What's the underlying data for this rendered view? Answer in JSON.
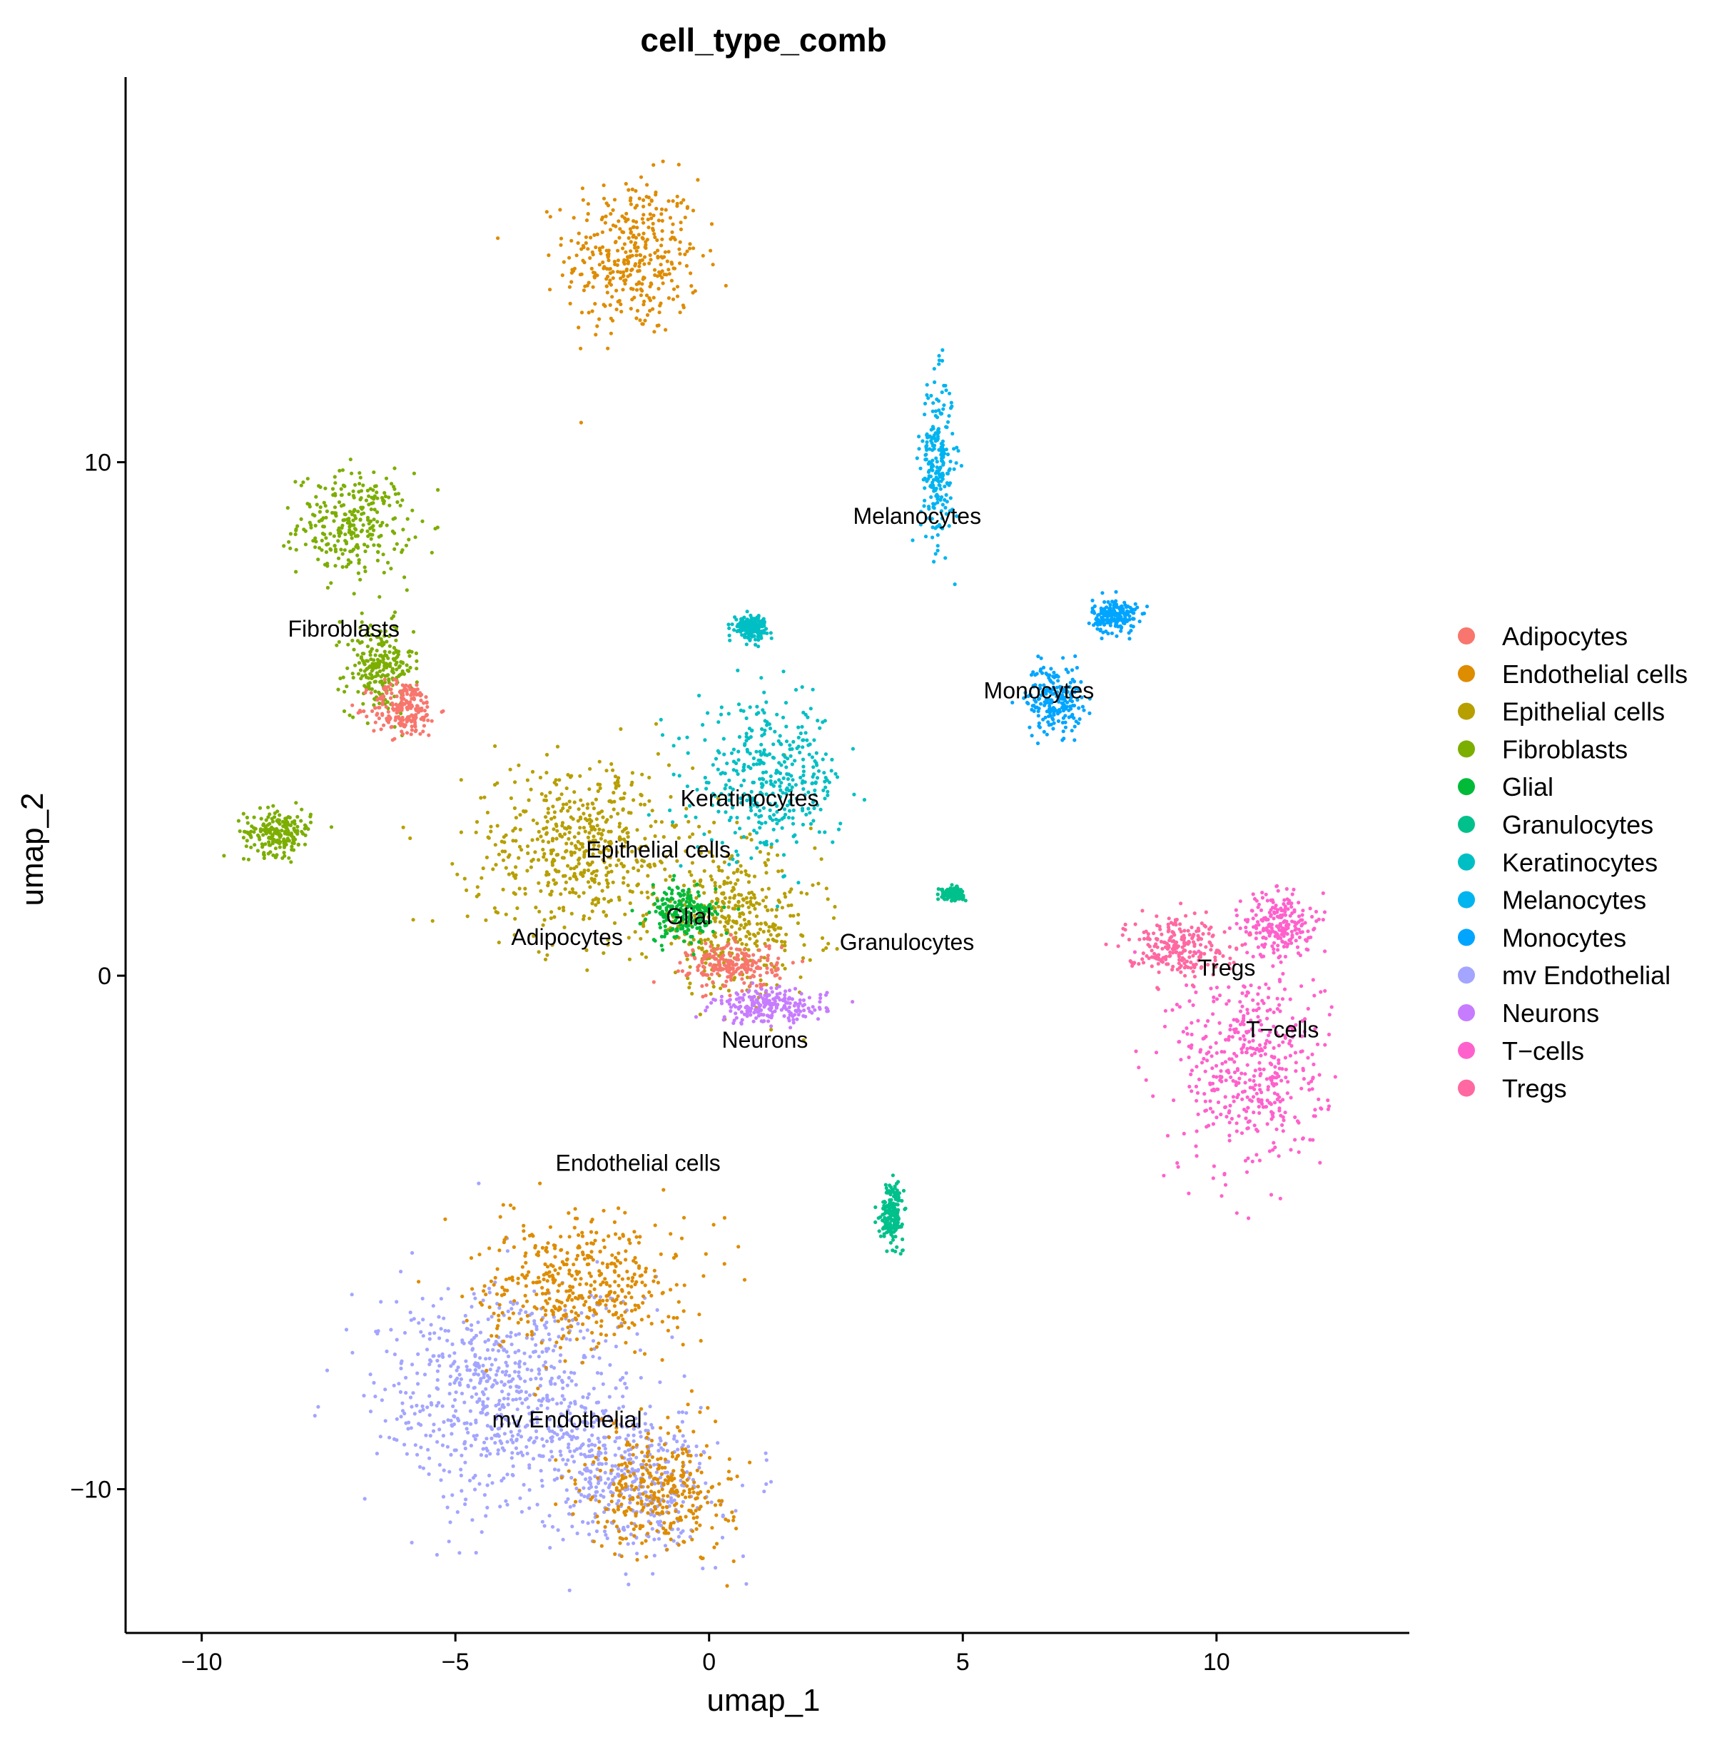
{
  "chart_data": {
    "type": "scatter",
    "title": "cell_type_comb",
    "xlabel": "umap_1",
    "ylabel": "umap_2",
    "xlim": [
      -11.5,
      13.8
    ],
    "ylim": [
      -12.8,
      17.5
    ],
    "xticks": [
      -10,
      -5,
      0,
      5,
      10
    ],
    "xtick_labels": [
      "−10",
      "−5",
      "0",
      "5",
      "10"
    ],
    "yticks": [
      -10,
      0,
      10
    ],
    "ytick_labels": [
      "−10",
      "0",
      "10"
    ],
    "grid": false,
    "legend_position": "right",
    "series": [
      {
        "name": "Adipocytes",
        "color": "#F8766D"
      },
      {
        "name": "Endothelial cells",
        "color": "#DE8C00"
      },
      {
        "name": "Epithelial cells",
        "color": "#B79F00"
      },
      {
        "name": "Fibroblasts",
        "color": "#7CAE00"
      },
      {
        "name": "Glial",
        "color": "#00BA38"
      },
      {
        "name": "Granulocytes",
        "color": "#00C08B"
      },
      {
        "name": "Keratinocytes",
        "color": "#00BFC4"
      },
      {
        "name": "Melanocytes",
        "color": "#00B4F0"
      },
      {
        "name": "Monocytes",
        "color": "#00A5FF"
      },
      {
        "name": "mv Endothelial",
        "color": "#A3A5FF"
      },
      {
        "name": "Neurons",
        "color": "#C77CFF"
      },
      {
        "name": "T−cells",
        "color": "#FF61CC"
      },
      {
        "name": "Tregs",
        "color": "#FF68A1"
      }
    ],
    "clusters": [
      {
        "series": 1,
        "cx": -1.5,
        "cy": 14.0,
        "sx": 1.2,
        "sy": 1.4
      },
      {
        "series": 3,
        "cx": -7.0,
        "cy": 8.8,
        "sx": 1.0,
        "sy": 0.9
      },
      {
        "series": 3,
        "cx": -6.5,
        "cy": 6.0,
        "sx": 0.6,
        "sy": 0.8
      },
      {
        "series": 0,
        "cx": -6.0,
        "cy": 5.2,
        "sx": 0.6,
        "sy": 0.5
      },
      {
        "series": 3,
        "cx": -8.5,
        "cy": 2.8,
        "sx": 0.6,
        "sy": 0.4
      },
      {
        "series": 7,
        "cx": 4.5,
        "cy": 10.0,
        "sx": 0.3,
        "sy": 1.5
      },
      {
        "series": 8,
        "cx": 6.8,
        "cy": 5.4,
        "sx": 0.5,
        "sy": 0.6
      },
      {
        "series": 8,
        "cx": 8.0,
        "cy": 7.0,
        "sx": 0.4,
        "sy": 0.3
      },
      {
        "series": 2,
        "cx": -2.5,
        "cy": 2.5,
        "sx": 2.0,
        "sy": 1.5
      },
      {
        "series": 2,
        "cx": 0.5,
        "cy": 1.0,
        "sx": 1.5,
        "sy": 1.2
      },
      {
        "series": 6,
        "cx": 1.2,
        "cy": 3.8,
        "sx": 1.3,
        "sy": 1.3
      },
      {
        "series": 6,
        "cx": 0.8,
        "cy": 6.8,
        "sx": 0.3,
        "sy": 0.2
      },
      {
        "series": 0,
        "cx": 0.5,
        "cy": 0.2,
        "sx": 0.8,
        "sy": 0.4
      },
      {
        "series": 10,
        "cx": 1.2,
        "cy": -0.6,
        "sx": 1.0,
        "sy": 0.3
      },
      {
        "series": 4,
        "cx": -0.5,
        "cy": 1.2,
        "sx": 0.6,
        "sy": 0.5
      },
      {
        "series": 5,
        "cx": 4.8,
        "cy": 1.6,
        "sx": 0.2,
        "sy": 0.1
      },
      {
        "series": 5,
        "cx": 3.6,
        "cy": -4.6,
        "sx": 0.2,
        "sy": 0.5
      },
      {
        "series": 11,
        "cx": 10.7,
        "cy": -1.8,
        "sx": 1.3,
        "sy": 1.9
      },
      {
        "series": 11,
        "cx": 11.2,
        "cy": 1.0,
        "sx": 0.6,
        "sy": 0.6
      },
      {
        "series": 12,
        "cx": 9.2,
        "cy": 0.6,
        "sx": 0.9,
        "sy": 0.5
      },
      {
        "series": 9,
        "cx": -4.0,
        "cy": -8.2,
        "sx": 2.3,
        "sy": 2.0
      },
      {
        "series": 9,
        "cx": -1.5,
        "cy": -9.8,
        "sx": 1.5,
        "sy": 1.3
      },
      {
        "series": 1,
        "cx": -2.5,
        "cy": -6.0,
        "sx": 1.8,
        "sy": 1.2
      },
      {
        "series": 1,
        "cx": -1.0,
        "cy": -10.0,
        "sx": 1.3,
        "sy": 1.1
      }
    ],
    "cluster_labels": [
      {
        "text": "Melanocytes",
        "x": 4.1,
        "y": 8.8
      },
      {
        "text": "Fibroblasts",
        "x": -7.2,
        "y": 6.6
      },
      {
        "text": "Monocytes",
        "x": 6.5,
        "y": 5.4
      },
      {
        "text": "Keratinocytes",
        "x": 0.8,
        "y": 3.3
      },
      {
        "text": "Epithelial cells",
        "x": -1.0,
        "y": 2.3
      },
      {
        "text": "Glial",
        "x": -0.4,
        "y": 1.0
      },
      {
        "text": "Adipocytes",
        "x": -2.8,
        "y": 0.6
      },
      {
        "text": "Granulocytes",
        "x": 3.9,
        "y": 0.5
      },
      {
        "text": "Tregs",
        "x": 10.2,
        "y": 0.0
      },
      {
        "text": "T−cells",
        "x": 11.3,
        "y": -1.2
      },
      {
        "text": "Neurons",
        "x": 1.1,
        "y": -1.4
      },
      {
        "text": "Endothelial cells",
        "x": -1.4,
        "y": -3.8
      },
      {
        "text": "mv Endothelial",
        "x": -2.8,
        "y": -8.8
      }
    ]
  }
}
